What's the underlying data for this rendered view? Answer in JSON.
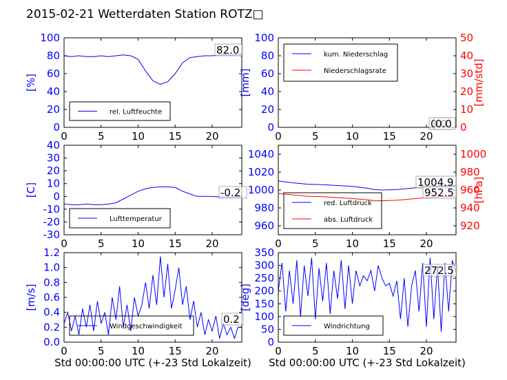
{
  "title": "2015-02-21 Wetterdaten Station ROTZ□",
  "colors": {
    "left_axis": "#0000ff",
    "right_axis": "#ff0000",
    "series_blue": "#0000ff",
    "series_red": "#ff0000"
  },
  "chart_data": [
    {
      "type": "line",
      "id": "humidity",
      "ylabel": "[%]",
      "xlim": [
        0,
        24
      ],
      "ylim": [
        0,
        100
      ],
      "xticks": [
        0,
        5,
        10,
        15,
        20
      ],
      "yticks": [
        0,
        20,
        40,
        60,
        80,
        100
      ],
      "legend_position": "lower-left",
      "value_label": "82.0",
      "series": [
        {
          "name": "rel. Luftfeuchte",
          "color": "#0000ff",
          "x": [
            0,
            1,
            2,
            3,
            4,
            5,
            6,
            7,
            8,
            9,
            10,
            11,
            12,
            13,
            14,
            15,
            16,
            17,
            18,
            19,
            20,
            21,
            22,
            23,
            24
          ],
          "y": [
            80,
            79,
            80,
            79,
            79,
            80,
            79,
            80,
            81,
            80,
            76,
            63,
            52,
            48,
            51,
            60,
            72,
            78,
            79,
            80,
            80,
            81,
            81,
            81,
            82
          ]
        }
      ]
    },
    {
      "type": "line",
      "id": "precip",
      "ylabel": "[mm]",
      "ylabel_right": "[mm/std]",
      "xlim": [
        0,
        24
      ],
      "ylim": [
        0,
        100
      ],
      "ylim_right": [
        0,
        50
      ],
      "xticks": [
        0,
        5,
        10,
        15,
        20
      ],
      "yticks": [
        0,
        20,
        40,
        60,
        80,
        100
      ],
      "yticks_right": [
        0,
        10,
        20,
        30,
        40,
        50
      ],
      "legend_position": "upper-left",
      "value_labels": [
        "0.0",
        "0.0"
      ],
      "series": [
        {
          "name": "kum. Niederschlag",
          "color": "#0000ff",
          "axis": "left",
          "x": [
            0,
            24
          ],
          "y": [
            0,
            0
          ]
        },
        {
          "name": "Niederschlagsrate",
          "color": "#ff0000",
          "axis": "right",
          "x": [
            0,
            24
          ],
          "y": [
            0,
            0
          ]
        }
      ]
    },
    {
      "type": "line",
      "id": "temperature",
      "ylabel": "[C]",
      "xlim": [
        0,
        24
      ],
      "ylim": [
        -30,
        40
      ],
      "xticks": [
        0,
        5,
        10,
        15,
        20
      ],
      "yticks": [
        -30,
        -20,
        -10,
        0,
        10,
        20,
        30,
        40
      ],
      "legend_position": "lower-left",
      "value_label": "-0.2",
      "series": [
        {
          "name": "Lufttemperatur",
          "color": "#0000ff",
          "x": [
            0,
            1,
            2,
            3,
            4,
            5,
            6,
            7,
            8,
            9,
            10,
            11,
            12,
            13,
            14,
            15,
            16,
            17,
            18,
            19,
            20,
            21,
            22,
            23,
            24
          ],
          "y": [
            -6,
            -6.5,
            -6.5,
            -6,
            -6.5,
            -6.5,
            -6,
            -5,
            -2,
            1,
            4,
            6,
            7,
            7.5,
            7.5,
            7,
            4,
            2,
            0,
            0,
            0,
            -0.5,
            -0.5,
            -0.5,
            -0.2
          ]
        }
      ]
    },
    {
      "type": "line",
      "id": "pressure",
      "ylabel_right": "[hPa]",
      "xlim": [
        0,
        24
      ],
      "ylim": [
        950,
        1050
      ],
      "ylim_right": [
        910,
        1010
      ],
      "xticks": [
        0,
        5,
        10,
        15,
        20
      ],
      "yticks": [
        960,
        980,
        1000,
        1020,
        1040
      ],
      "yticks_right": [
        920,
        940,
        960,
        980,
        1000
      ],
      "legend_position": "lower-left",
      "value_labels": [
        "1004.9",
        "952.5"
      ],
      "series": [
        {
          "name": "red. Luftdruck",
          "color": "#0000ff",
          "axis": "left",
          "x": [
            0,
            2,
            4,
            6,
            8,
            10,
            12,
            13,
            14,
            16,
            18,
            20,
            22,
            24
          ],
          "y": [
            1010,
            1008,
            1006.5,
            1006,
            1005,
            1004,
            1002,
            1000.5,
            1000,
            1000.5,
            1002,
            1003.5,
            1004.5,
            1004.9
          ]
        },
        {
          "name": "abs. Luftdruck",
          "color": "#ff0000",
          "axis": "right",
          "x": [
            0,
            2,
            4,
            6,
            8,
            10,
            12,
            13,
            14,
            16,
            18,
            20,
            22,
            24
          ],
          "y": [
            956,
            954.5,
            953,
            952.5,
            951.5,
            950.5,
            949,
            948,
            948,
            948.5,
            950,
            951.5,
            952.5,
            952.5
          ]
        }
      ]
    },
    {
      "type": "line",
      "id": "windspeed",
      "ylabel": "[m/s]",
      "xlabel": "Std 00:00:00 UTC (+-23 Std Lokalzeit)",
      "xlim": [
        0,
        24
      ],
      "ylim": [
        0,
        1.2
      ],
      "xticks": [
        0,
        5,
        10,
        15,
        20
      ],
      "yticks": [
        0.0,
        0.2,
        0.4,
        0.6,
        0.8,
        1.0,
        1.2
      ],
      "legend_position": "lower-left",
      "value_label": "0.2",
      "series": [
        {
          "name": "Windgeschwindigkeit",
          "color": "#0000ff",
          "x": [
            0,
            0.5,
            1,
            1.5,
            2,
            2.5,
            3,
            3.5,
            4,
            4.5,
            5,
            5.5,
            6,
            6.5,
            7,
            7.5,
            8,
            8.5,
            9,
            9.5,
            10,
            10.5,
            11,
            11.5,
            12,
            12.5,
            13,
            13.5,
            14,
            14.5,
            15,
            15.5,
            16,
            16.5,
            17,
            17.5,
            18,
            18.5,
            19,
            19.5,
            20,
            20.5,
            21,
            21.5,
            22,
            22.5,
            23,
            23.5,
            24
          ],
          "y": [
            0.25,
            0.4,
            0.15,
            0.35,
            0.1,
            0.45,
            0.2,
            0.5,
            0.15,
            0.55,
            0.25,
            0.4,
            0.1,
            0.6,
            0.3,
            0.75,
            0.2,
            0.5,
            0.15,
            0.6,
            0.35,
            0.5,
            0.8,
            0.45,
            0.9,
            0.5,
            1.15,
            0.6,
            1.05,
            0.45,
            0.7,
            1.0,
            0.5,
            0.75,
            0.3,
            0.55,
            0.2,
            0.4,
            0.1,
            0.3,
            0.15,
            0.35,
            0.05,
            0.25,
            0.1,
            0.2,
            0.05,
            0.2,
            0.2
          ]
        }
      ]
    },
    {
      "type": "line",
      "id": "winddir",
      "ylabel": "[deg]",
      "xlabel": "Std 00:00:00 UTC (+-23 Std Lokalzeit)",
      "xlim": [
        0,
        24
      ],
      "ylim": [
        0,
        350
      ],
      "xticks": [
        0,
        5,
        10,
        15,
        20
      ],
      "yticks": [
        0,
        50,
        100,
        150,
        200,
        250,
        300,
        350
      ],
      "legend_position": "lower-left",
      "value_label": "272.5",
      "series": [
        {
          "name": "Windrichtung",
          "color": "#0000ff",
          "x": [
            0,
            0.5,
            1,
            1.5,
            2,
            2.5,
            3,
            3.5,
            4,
            4.5,
            5,
            5.5,
            6,
            6.5,
            7,
            7.5,
            8,
            8.5,
            9,
            9.5,
            10,
            10.5,
            11,
            11.5,
            12,
            12.5,
            13,
            13.5,
            14,
            14.5,
            15,
            15.5,
            16,
            16.5,
            17,
            17.5,
            18,
            18.5,
            19,
            19.5,
            20,
            20.5,
            21,
            21.5,
            22,
            22.5,
            23,
            23.5,
            24
          ],
          "y": [
            200,
            310,
            120,
            280,
            150,
            320,
            100,
            300,
            180,
            330,
            90,
            290,
            160,
            310,
            110,
            280,
            170,
            320,
            130,
            300,
            150,
            280,
            220,
            260,
            240,
            280,
            200,
            300,
            250,
            220,
            230,
            180,
            240,
            90,
            250,
            60,
            220,
            280,
            120,
            310,
            60,
            330,
            90,
            300,
            40,
            310,
            120,
            320,
            272.5
          ]
        }
      ]
    }
  ]
}
